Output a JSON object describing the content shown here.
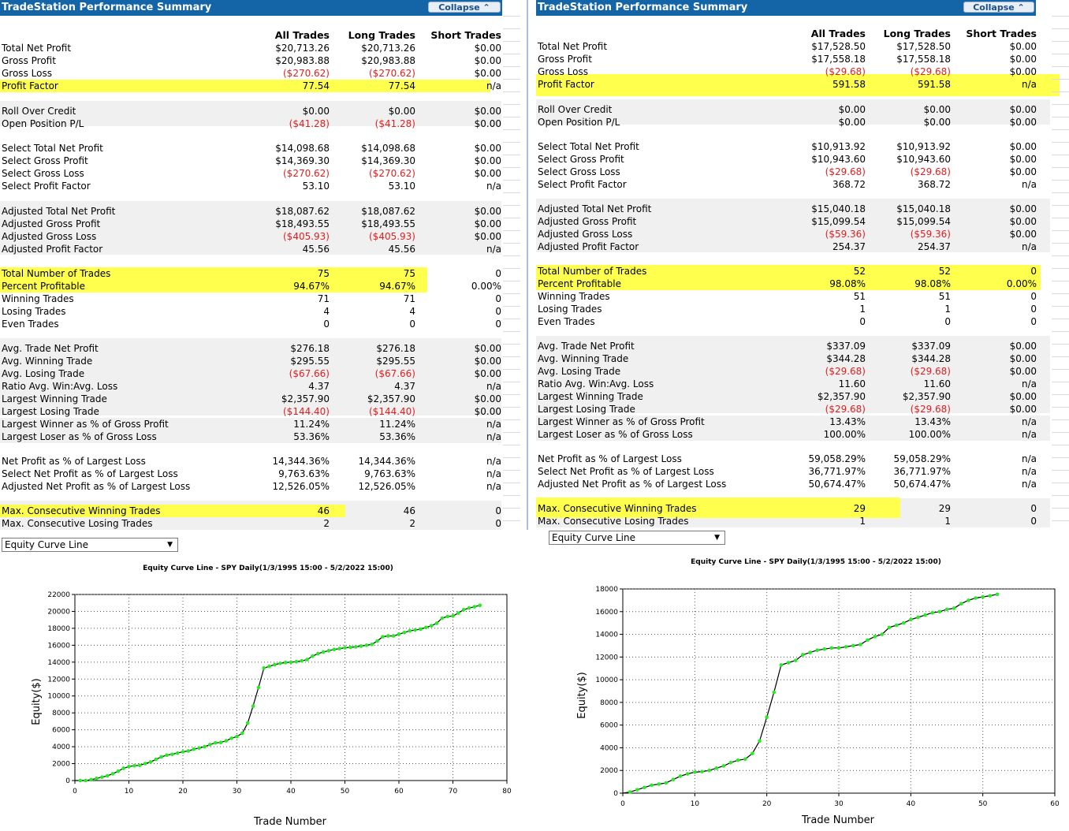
{
  "panels": [
    {
      "title": "TradeStation Performance Summary",
      "collapse_label": "Collapse ⌃",
      "columns": [
        "All Trades",
        "Long Trades",
        "Short Trades"
      ],
      "rows": [
        {
          "label": "Total Net Profit",
          "all": "$20,713.26",
          "long": "$20,713.26",
          "short": "$0.00"
        },
        {
          "label": "Gross Profit",
          "all": "$20,983.88",
          "long": "$20,983.88",
          "short": "$0.00"
        },
        {
          "label": "Gross Loss",
          "all": "($270.62)",
          "long": "($270.62)",
          "short": "$0.00"
        },
        {
          "label": "Profit Factor",
          "all": "77.54",
          "long": "77.54",
          "short": "n/a"
        },
        {
          "label": "Roll Over Credit",
          "all": "$0.00",
          "long": "$0.00",
          "short": "$0.00"
        },
        {
          "label": "Open Position P/L",
          "all": "($41.28)",
          "long": "($41.28)",
          "short": "$0.00"
        },
        {
          "label": "Select Total Net Profit",
          "all": "$14,098.68",
          "long": "$14,098.68",
          "short": "$0.00"
        },
        {
          "label": "Select Gross Profit",
          "all": "$14,369.30",
          "long": "$14,369.30",
          "short": "$0.00"
        },
        {
          "label": "Select Gross Loss",
          "all": "($270.62)",
          "long": "($270.62)",
          "short": "$0.00"
        },
        {
          "label": "Select Profit Factor",
          "all": "53.10",
          "long": "53.10",
          "short": "n/a"
        },
        {
          "label": "Adjusted Total Net Profit",
          "all": "$18,087.62",
          "long": "$18,087.62",
          "short": "$0.00"
        },
        {
          "label": "Adjusted Gross Profit",
          "all": "$18,493.55",
          "long": "$18,493.55",
          "short": "$0.00"
        },
        {
          "label": "Adjusted Gross Loss",
          "all": "($405.93)",
          "long": "($405.93)",
          "short": "$0.00"
        },
        {
          "label": "Adjusted Profit Factor",
          "all": "45.56",
          "long": "45.56",
          "short": "n/a"
        },
        {
          "label": "Total Number of Trades",
          "all": "75",
          "long": "75",
          "short": "0"
        },
        {
          "label": "Percent Profitable",
          "all": "94.67%",
          "long": "94.67%",
          "short": "0.00%"
        },
        {
          "label": "Winning Trades",
          "all": "71",
          "long": "71",
          "short": "0"
        },
        {
          "label": "Losing Trades",
          "all": "4",
          "long": "4",
          "short": "0"
        },
        {
          "label": "Even Trades",
          "all": "0",
          "long": "0",
          "short": "0"
        },
        {
          "label": "Avg. Trade Net Profit",
          "all": "$276.18",
          "long": "$276.18",
          "short": "$0.00"
        },
        {
          "label": "Avg. Winning Trade",
          "all": "$295.55",
          "long": "$295.55",
          "short": "$0.00"
        },
        {
          "label": "Avg. Losing Trade",
          "all": "($67.66)",
          "long": "($67.66)",
          "short": "$0.00"
        },
        {
          "label": "Ratio Avg. Win:Avg. Loss",
          "all": "4.37",
          "long": "4.37",
          "short": "n/a"
        },
        {
          "label": "Largest Winning Trade",
          "all": "$2,357.90",
          "long": "$2,357.90",
          "short": "$0.00"
        },
        {
          "label": "Largest Losing Trade",
          "all": "($144.40)",
          "long": "($144.40)",
          "short": "$0.00"
        },
        {
          "label": "Largest Winner as % of Gross Profit",
          "all": "11.24%",
          "long": "11.24%",
          "short": "n/a"
        },
        {
          "label": "Largest Loser as % of Gross Loss",
          "all": "53.36%",
          "long": "53.36%",
          "short": "n/a"
        },
        {
          "label": "Net Profit as % of Largest Loss",
          "all": "14,344.36%",
          "long": "14,344.36%",
          "short": "n/a"
        },
        {
          "label": "Select Net Profit as % of Largest Loss",
          "all": "9,763.63%",
          "long": "9,763.63%",
          "short": "n/a"
        },
        {
          "label": "Adjusted Net Profit as % of Largest Loss",
          "all": "12,526.05%",
          "long": "12,526.05%",
          "short": "n/a"
        },
        {
          "label": "Max. Consecutive Winning Trades",
          "all": "46",
          "long": "46",
          "short": "0"
        },
        {
          "label": "Max. Consecutive Losing Trades",
          "all": "2",
          "long": "2",
          "short": "0"
        }
      ],
      "dropdown": "Equity Curve Line",
      "chart": {
        "title": "Equity Curve Line - SPY Daily(1/3/1995 15:00 - 5/2/2022 15:00)",
        "xlabel": "Trade Number",
        "ylabel": "Equity($)",
        "yticks": [
          "0",
          "2000",
          "4000",
          "6000",
          "8000",
          "10000",
          "12000",
          "14000",
          "16000",
          "18000",
          "20000",
          "22000"
        ],
        "xticks": [
          "0",
          "10",
          "20",
          "30",
          "40",
          "50",
          "60",
          "70",
          "80"
        ]
      }
    },
    {
      "title": "TradeStation Performance Summary",
      "collapse_label": "Collapse ⌃",
      "columns": [
        "All Trades",
        "Long Trades",
        "Short Trades"
      ],
      "rows": [
        {
          "label": "Total Net Profit",
          "all": "$17,528.50",
          "long": "$17,528.50",
          "short": "$0.00"
        },
        {
          "label": "Gross Profit",
          "all": "$17,558.18",
          "long": "$17,558.18",
          "short": "$0.00"
        },
        {
          "label": "Gross Loss",
          "all": "($29.68)",
          "long": "($29.68)",
          "short": "$0.00"
        },
        {
          "label": "Profit Factor",
          "all": "591.58",
          "long": "591.58",
          "short": "n/a"
        },
        {
          "label": "Roll Over Credit",
          "all": "$0.00",
          "long": "$0.00",
          "short": "$0.00"
        },
        {
          "label": "Open Position P/L",
          "all": "$0.00",
          "long": "$0.00",
          "short": "$0.00"
        },
        {
          "label": "Select Total Net Profit",
          "all": "$10,913.92",
          "long": "$10,913.92",
          "short": "$0.00"
        },
        {
          "label": "Select Gross Profit",
          "all": "$10,943.60",
          "long": "$10,943.60",
          "short": "$0.00"
        },
        {
          "label": "Select Gross Loss",
          "all": "($29.68)",
          "long": "($29.68)",
          "short": "$0.00"
        },
        {
          "label": "Select Profit Factor",
          "all": "368.72",
          "long": "368.72",
          "short": "n/a"
        },
        {
          "label": "Adjusted Total Net Profit",
          "all": "$15,040.18",
          "long": "$15,040.18",
          "short": "$0.00"
        },
        {
          "label": "Adjusted Gross Profit",
          "all": "$15,099.54",
          "long": "$15,099.54",
          "short": "$0.00"
        },
        {
          "label": "Adjusted Gross Loss",
          "all": "($59.36)",
          "long": "($59.36)",
          "short": "$0.00"
        },
        {
          "label": "Adjusted Profit Factor",
          "all": "254.37",
          "long": "254.37",
          "short": "n/a"
        },
        {
          "label": "Total Number of Trades",
          "all": "52",
          "long": "52",
          "short": "0"
        },
        {
          "label": "Percent Profitable",
          "all": "98.08%",
          "long": "98.08%",
          "short": "0.00%"
        },
        {
          "label": "Winning Trades",
          "all": "51",
          "long": "51",
          "short": "0"
        },
        {
          "label": "Losing Trades",
          "all": "1",
          "long": "1",
          "short": "0"
        },
        {
          "label": "Even Trades",
          "all": "0",
          "long": "0",
          "short": "0"
        },
        {
          "label": "Avg. Trade Net Profit",
          "all": "$337.09",
          "long": "$337.09",
          "short": "$0.00"
        },
        {
          "label": "Avg. Winning Trade",
          "all": "$344.28",
          "long": "$344.28",
          "short": "$0.00"
        },
        {
          "label": "Avg. Losing Trade",
          "all": "($29.68)",
          "long": "($29.68)",
          "short": "$0.00"
        },
        {
          "label": "Ratio Avg. Win:Avg. Loss",
          "all": "11.60",
          "long": "11.60",
          "short": "n/a"
        },
        {
          "label": "Largest Winning Trade",
          "all": "$2,357.90",
          "long": "$2,357.90",
          "short": "$0.00"
        },
        {
          "label": "Largest Losing Trade",
          "all": "($29.68)",
          "long": "($29.68)",
          "short": "$0.00"
        },
        {
          "label": "Largest Winner as % of Gross Profit",
          "all": "13.43%",
          "long": "13.43%",
          "short": "n/a"
        },
        {
          "label": "Largest Loser as % of Gross Loss",
          "all": "100.00%",
          "long": "100.00%",
          "short": "n/a"
        },
        {
          "label": "Net Profit as % of Largest Loss",
          "all": "59,058.29%",
          "long": "59,058.29%",
          "short": "n/a"
        },
        {
          "label": "Select Net Profit as % of Largest Loss",
          "all": "36,771.97%",
          "long": "36,771.97%",
          "short": "n/a"
        },
        {
          "label": "Adjusted Net Profit as % of Largest Loss",
          "all": "50,674.47%",
          "long": "50,674.47%",
          "short": "n/a"
        },
        {
          "label": "Max. Consecutive Winning Trades",
          "all": "29",
          "long": "29",
          "short": "0"
        },
        {
          "label": "Max. Consecutive Losing Trades",
          "all": "1",
          "long": "1",
          "short": "0"
        }
      ],
      "dropdown": "Equity Curve Line",
      "chart": {
        "title": "Equity Curve Line - SPY Daily(1/3/1995 15:00 - 5/2/2022 15:00)",
        "xlabel": "Trade Number",
        "ylabel": "Equity($)",
        "yticks": [
          "0",
          "2000",
          "4000",
          "6000",
          "8000",
          "10000",
          "12000",
          "14000",
          "16000",
          "18000"
        ],
        "xticks": [
          "0",
          "10",
          "20",
          "30",
          "40",
          "50",
          "60"
        ]
      }
    }
  ],
  "colors": {
    "title_bar": "#1464a8",
    "highlight": "#ffff4d",
    "negative": "#e02020",
    "curve_marker": "#22ee22",
    "band": "#f0f0f0"
  },
  "chart_data": [
    {
      "type": "line",
      "title": "Equity Curve Line - SPY Daily(1/3/1995 15:00 - 5/2/2022 15:00)",
      "xlabel": "Trade Number",
      "ylabel": "Equity($)",
      "xlim": [
        0,
        80
      ],
      "ylim": [
        0,
        22000
      ],
      "grid": true,
      "x": [
        0,
        1,
        2,
        3,
        4,
        5,
        6,
        7,
        8,
        9,
        10,
        11,
        12,
        13,
        14,
        15,
        16,
        17,
        18,
        19,
        20,
        21,
        22,
        23,
        24,
        25,
        26,
        27,
        28,
        29,
        30,
        31,
        32,
        33,
        34,
        35,
        36,
        37,
        38,
        39,
        40,
        41,
        42,
        43,
        44,
        45,
        46,
        47,
        48,
        49,
        50,
        51,
        52,
        53,
        54,
        55,
        56,
        57,
        58,
        59,
        60,
        61,
        62,
        63,
        64,
        65,
        66,
        67,
        68,
        69,
        70,
        71,
        72,
        73,
        74,
        75
      ],
      "series": [
        {
          "values": [
            0,
            0,
            0,
            100,
            250,
            400,
            550,
            800,
            1100,
            1450,
            1650,
            1750,
            1800,
            2000,
            2200,
            2500,
            2800,
            3000,
            3100,
            3250,
            3400,
            3500,
            3700,
            3850,
            4000,
            4250,
            4450,
            4500,
            4700,
            5000,
            5200,
            5600,
            6800,
            8800,
            11000,
            13300,
            13500,
            13700,
            13850,
            13950,
            14000,
            14050,
            14150,
            14300,
            14700,
            15000,
            15200,
            15350,
            15500,
            15600,
            15700,
            15750,
            15800,
            15900,
            16000,
            16100,
            16500,
            17000,
            17100,
            17100,
            17300,
            17500,
            17700,
            17800,
            17900,
            18100,
            18300,
            18600,
            19200,
            19400,
            19450,
            19800,
            20200,
            20400,
            20550,
            20713
          ]
        }
      ]
    },
    {
      "type": "line",
      "title": "Equity Curve Line - SPY Daily(1/3/1995 15:00 - 5/2/2022 15:00)",
      "xlabel": "Trade Number",
      "ylabel": "Equity($)",
      "xlim": [
        0,
        60
      ],
      "ylim": [
        0,
        18000
      ],
      "grid": true,
      "x": [
        0,
        1,
        2,
        3,
        4,
        5,
        6,
        7,
        8,
        9,
        10,
        11,
        12,
        13,
        14,
        15,
        16,
        17,
        18,
        19,
        20,
        21,
        22,
        23,
        24,
        25,
        26,
        27,
        28,
        29,
        30,
        31,
        32,
        33,
        34,
        35,
        36,
        37,
        38,
        39,
        40,
        41,
        42,
        43,
        44,
        45,
        46,
        47,
        48,
        49,
        50,
        51,
        52
      ],
      "series": [
        {
          "values": [
            0,
            100,
            300,
            500,
            700,
            800,
            900,
            1200,
            1500,
            1700,
            1850,
            1900,
            2000,
            2200,
            2400,
            2700,
            2900,
            3000,
            3500,
            4600,
            6700,
            8900,
            11300,
            11500,
            11700,
            12200,
            12400,
            12600,
            12700,
            12800,
            12800,
            12900,
            13000,
            13100,
            13500,
            13800,
            14000,
            14600,
            14800,
            15000,
            15300,
            15500,
            15700,
            15900,
            16000,
            16200,
            16300,
            16700,
            17000,
            17200,
            17300,
            17400,
            17528
          ]
        }
      ]
    }
  ]
}
